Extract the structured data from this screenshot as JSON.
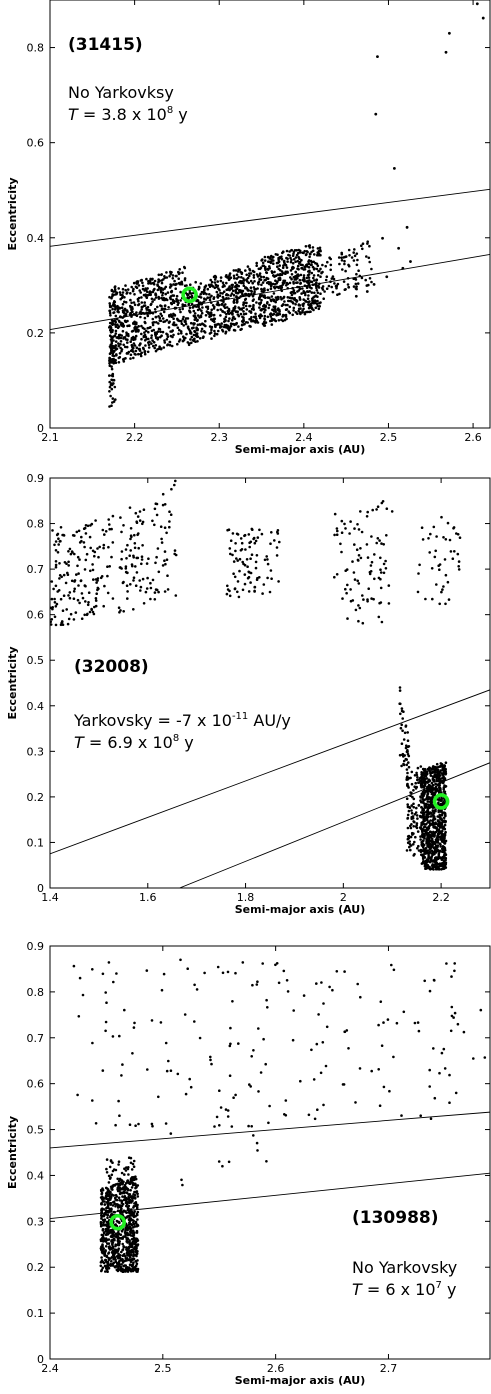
{
  "chart_data": [
    {
      "type": "scatter",
      "id": "31415",
      "title": "(31415)",
      "annotation_lines": [
        {
          "text": "No Yarkovksy"
        },
        {
          "italic": "T",
          "text": " = 3.8 x 10",
          "sup": "8",
          "suffix": " y"
        }
      ],
      "xlabel": "Semi-major axis (AU)",
      "ylabel": "Eccentricity",
      "xlim": [
        2.1,
        2.62
      ],
      "ylim": [
        0,
        0.9
      ],
      "xticks": [
        2.1,
        2.2,
        2.3,
        2.4,
        2.5,
        2.6
      ],
      "xtick_labels": [
        "2.1",
        "2.2",
        "2.3",
        "2.4",
        "2.5",
        "2.6"
      ],
      "yticks": [
        0,
        0.2,
        0.4,
        0.6,
        0.8
      ],
      "ytick_labels": [
        "0",
        "0.2",
        "0.4",
        "0.6",
        "0.8"
      ],
      "boundary_lines": [
        {
          "x": [
            2.1,
            2.62
          ],
          "y": [
            0.382,
            0.502
          ]
        },
        {
          "x": [
            2.1,
            2.62
          ],
          "y": [
            0.207,
            0.365
          ]
        }
      ],
      "clusters": [
        {
          "x0": 2.17,
          "x1": 2.26,
          "ylo0": 0.13,
          "ylo1": 0.18,
          "yhi0": 0.29,
          "yhi1": 0.34,
          "n": 620
        },
        {
          "x0": 2.26,
          "x1": 2.35,
          "ylo0": 0.17,
          "ylo1": 0.22,
          "yhi0": 0.3,
          "yhi1": 0.35,
          "n": 560
        },
        {
          "x0": 2.35,
          "x1": 2.42,
          "ylo0": 0.21,
          "ylo1": 0.25,
          "yhi0": 0.36,
          "yhi1": 0.39,
          "n": 520
        },
        {
          "x0": 2.42,
          "x1": 2.48,
          "ylo0": 0.27,
          "ylo1": 0.3,
          "yhi0": 0.35,
          "yhi1": 0.4,
          "n": 90
        },
        {
          "x0": 2.17,
          "x1": 2.178,
          "ylo0": 0.04,
          "ylo1": 0.06,
          "yhi0": 0.28,
          "yhi1": 0.3,
          "n": 80
        }
      ],
      "points": [
        {
          "x": 2.605,
          "y": 0.892
        },
        {
          "x": 2.612,
          "y": 0.862
        },
        {
          "x": 2.572,
          "y": 0.83
        },
        {
          "x": 2.568,
          "y": 0.79
        },
        {
          "x": 2.487,
          "y": 0.781
        },
        {
          "x": 2.485,
          "y": 0.66
        },
        {
          "x": 2.507,
          "y": 0.546
        },
        {
          "x": 2.522,
          "y": 0.422
        },
        {
          "x": 2.493,
          "y": 0.399
        },
        {
          "x": 2.512,
          "y": 0.378
        },
        {
          "x": 2.526,
          "y": 0.35
        },
        {
          "x": 2.517,
          "y": 0.336
        },
        {
          "x": 2.498,
          "y": 0.318
        },
        {
          "x": 2.483,
          "y": 0.302
        },
        {
          "x": 2.475,
          "y": 0.287
        },
        {
          "x": 2.453,
          "y": 0.296
        },
        {
          "x": 2.462,
          "y": 0.277
        }
      ],
      "marker": {
        "x": 2.265,
        "y": 0.28
      }
    },
    {
      "type": "scatter",
      "id": "32008",
      "title": "(32008)",
      "annotation_lines": [
        {
          "text": "Yarkovsky = -7 x 10",
          "sup": "-11",
          "suffix": " AU/y"
        },
        {
          "italic": "T",
          "text": " = 6.9 x 10",
          "sup": "8",
          "suffix": " y"
        }
      ],
      "xlabel": "Semi-major axis (AU)",
      "ylabel": "Eccentricity",
      "xlim": [
        1.4,
        2.3
      ],
      "ylim": [
        0,
        0.9
      ],
      "xticks": [
        1.4,
        1.6,
        1.8,
        2.0,
        2.2
      ],
      "xtick_labels": [
        "1.4",
        "1.6",
        "1.8",
        "2",
        "2.2"
      ],
      "yticks": [
        0,
        0.1,
        0.2,
        0.3,
        0.4,
        0.5,
        0.6,
        0.7,
        0.8,
        0.9
      ],
      "ytick_labels": [
        "0",
        "0.1",
        "0.2",
        "0.3",
        "0.4",
        "0.5",
        "0.6",
        "0.7",
        "0.8",
        "0.9"
      ],
      "boundary_lines": [
        {
          "x": [
            1.4,
            2.3
          ],
          "y": [
            0.075,
            0.435
          ]
        },
        {
          "x": [
            1.665,
            2.3
          ],
          "y": [
            0.0,
            0.275
          ]
        }
      ],
      "clusters": [
        {
          "x0": 2.16,
          "x1": 2.21,
          "ylo0": 0.04,
          "ylo1": 0.04,
          "yhi0": 0.26,
          "yhi1": 0.28,
          "n": 900
        },
        {
          "x0": 2.13,
          "x1": 2.16,
          "ylo0": 0.08,
          "ylo1": 0.05,
          "yhi0": 0.26,
          "yhi1": 0.27,
          "n": 110
        },
        {
          "x0": 2.115,
          "x1": 2.135,
          "ylo0": 0.28,
          "ylo1": 0.2,
          "yhi0": 0.46,
          "yhi1": 0.32,
          "n": 50
        },
        {
          "x0": 1.4,
          "x1": 1.53,
          "ylo0": 0.56,
          "ylo1": 0.62,
          "yhi0": 0.79,
          "yhi1": 0.82,
          "n": 170
        },
        {
          "x0": 1.54,
          "x1": 1.66,
          "ylo0": 0.6,
          "ylo1": 0.63,
          "yhi0": 0.82,
          "yhi1": 0.9,
          "n": 120
        },
        {
          "x0": 1.76,
          "x1": 1.87,
          "ylo0": 0.63,
          "ylo1": 0.65,
          "yhi0": 0.79,
          "yhi1": 0.79,
          "n": 95
        },
        {
          "x0": 1.98,
          "x1": 2.1,
          "ylo0": 0.6,
          "ylo1": 0.56,
          "yhi0": 0.83,
          "yhi1": 0.86,
          "n": 95
        },
        {
          "x0": 2.15,
          "x1": 2.24,
          "ylo0": 0.64,
          "ylo1": 0.6,
          "yhi0": 0.86,
          "yhi1": 0.78,
          "n": 45
        }
      ],
      "points": [],
      "marker": {
        "x": 2.2,
        "y": 0.19
      }
    },
    {
      "type": "scatter",
      "id": "130988",
      "title": "(130988)",
      "annotation_lines": [
        {
          "text": "No Yarkovsky"
        },
        {
          "italic": "T",
          "text": " = 6 x 10",
          "sup": "7",
          "suffix": " y"
        }
      ],
      "xlabel": "Semi-major axis (AU)",
      "ylabel": "Eccentricity",
      "xlim": [
        2.4,
        2.79
      ],
      "ylim": [
        0,
        0.9
      ],
      "xticks": [
        2.4,
        2.5,
        2.6,
        2.7
      ],
      "xtick_labels": [
        "2.4",
        "2.5",
        "2.6",
        "2.7"
      ],
      "yticks": [
        0,
        0.1,
        0.2,
        0.3,
        0.4,
        0.5,
        0.6,
        0.7,
        0.8,
        0.9
      ],
      "ytick_labels": [
        "0",
        "0.1",
        "0.2",
        "0.3",
        "0.4",
        "0.5",
        "0.6",
        "0.7",
        "0.8",
        "0.9"
      ],
      "boundary_lines": [
        {
          "x": [
            2.4,
            2.79
          ],
          "y": [
            0.46,
            0.538
          ]
        },
        {
          "x": [
            2.4,
            2.79
          ],
          "y": [
            0.306,
            0.405
          ]
        }
      ],
      "clusters": [
        {
          "x0": 2.445,
          "x1": 2.478,
          "ylo0": 0.19,
          "ylo1": 0.19,
          "yhi0": 0.37,
          "yhi1": 0.4,
          "n": 850
        },
        {
          "x0": 2.45,
          "x1": 2.475,
          "ylo0": 0.38,
          "ylo1": 0.38,
          "yhi0": 0.44,
          "yhi1": 0.44,
          "n": 40
        },
        {
          "x0": 2.42,
          "x1": 2.79,
          "ylo0": 0.5,
          "ylo1": 0.52,
          "yhi0": 0.87,
          "yhi1": 0.87,
          "n": 190
        },
        {
          "x0": 2.48,
          "x1": 2.6,
          "ylo0": 0.36,
          "ylo1": 0.42,
          "yhi0": 0.52,
          "yhi1": 0.54,
          "n": 14
        }
      ],
      "points": [],
      "marker": {
        "x": 2.46,
        "y": 0.298
      }
    }
  ]
}
